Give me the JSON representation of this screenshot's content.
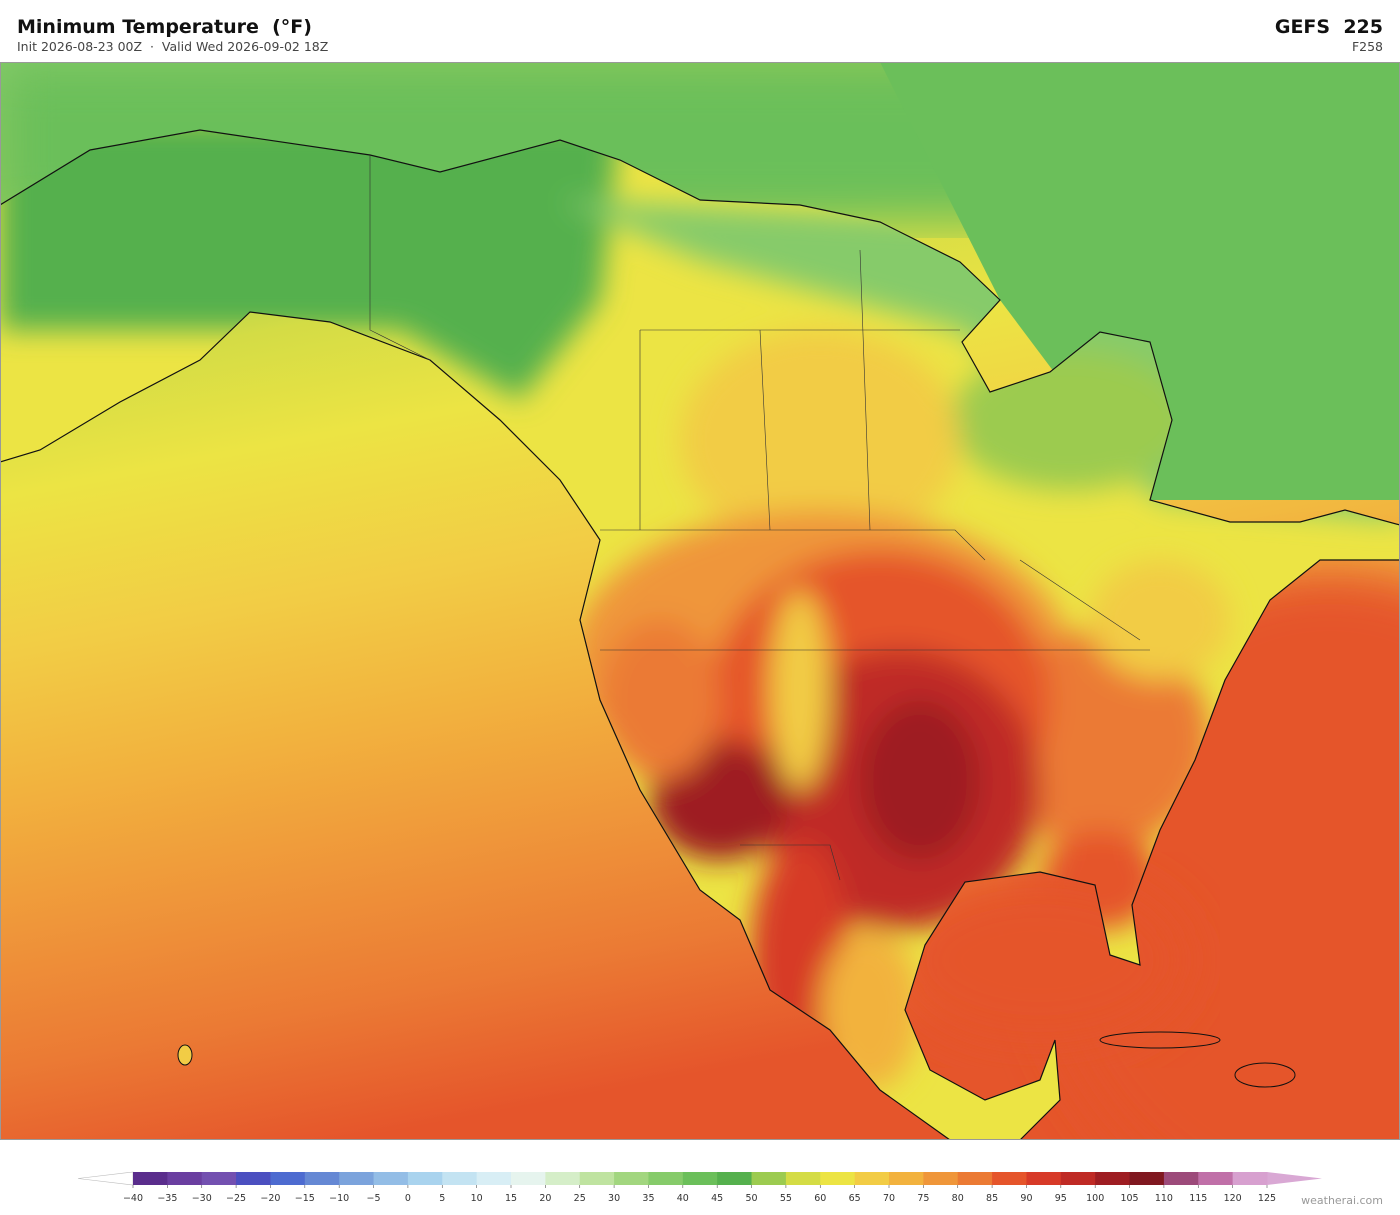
{
  "header": {
    "title": "Minimum Temperature  (°F)",
    "subtitle": "Init 2026-08-23 00Z  ·  Valid Wed 2026-09-02 18Z",
    "model": "GEFS  225",
    "forecast_hour": "F258"
  },
  "colorbar": {
    "ticks": [
      {
        "value": -40,
        "label": "−40"
      },
      {
        "value": -35,
        "label": "−35"
      },
      {
        "value": -30,
        "label": "−30"
      },
      {
        "value": -25,
        "label": "−25"
      },
      {
        "value": -20,
        "label": "−20"
      },
      {
        "value": -15,
        "label": "−15"
      },
      {
        "value": -10,
        "label": "−10"
      },
      {
        "value": -5,
        "label": "−5"
      },
      0,
      5,
      10,
      15,
      20,
      25,
      30,
      35,
      40,
      45,
      50,
      55,
      60,
      65,
      70,
      75,
      80,
      85,
      90,
      95,
      100,
      105,
      110,
      115,
      120,
      125
    ],
    "colors": [
      "#5a2d8c",
      "#6a3ea0",
      "#7350b0",
      "#4b4fc0",
      "#4d6bd0",
      "#6588d4",
      "#7ba3dc",
      "#93bde6",
      "#a9d3ee",
      "#c3e3f2",
      "#d8eef5",
      "#e6f4ee",
      "#d5eec8",
      "#bfe3a0",
      "#a2d67f",
      "#86cb6a",
      "#6bbf5a",
      "#55b04d",
      "#9ccb50",
      "#d4dc45",
      "#ece444",
      "#f2cc45",
      "#f2b23e",
      "#ef963a",
      "#eb7a34",
      "#e5552b",
      "#d73a28",
      "#bf2a25",
      "#9e1d22",
      "#801820",
      "#9c4a7a",
      "#c070a8",
      "#d7a0cf"
    ],
    "under_color": "#ffffff",
    "over_color": "#d9a8d4"
  },
  "footer": {
    "credit": "weatherai.com"
  }
}
